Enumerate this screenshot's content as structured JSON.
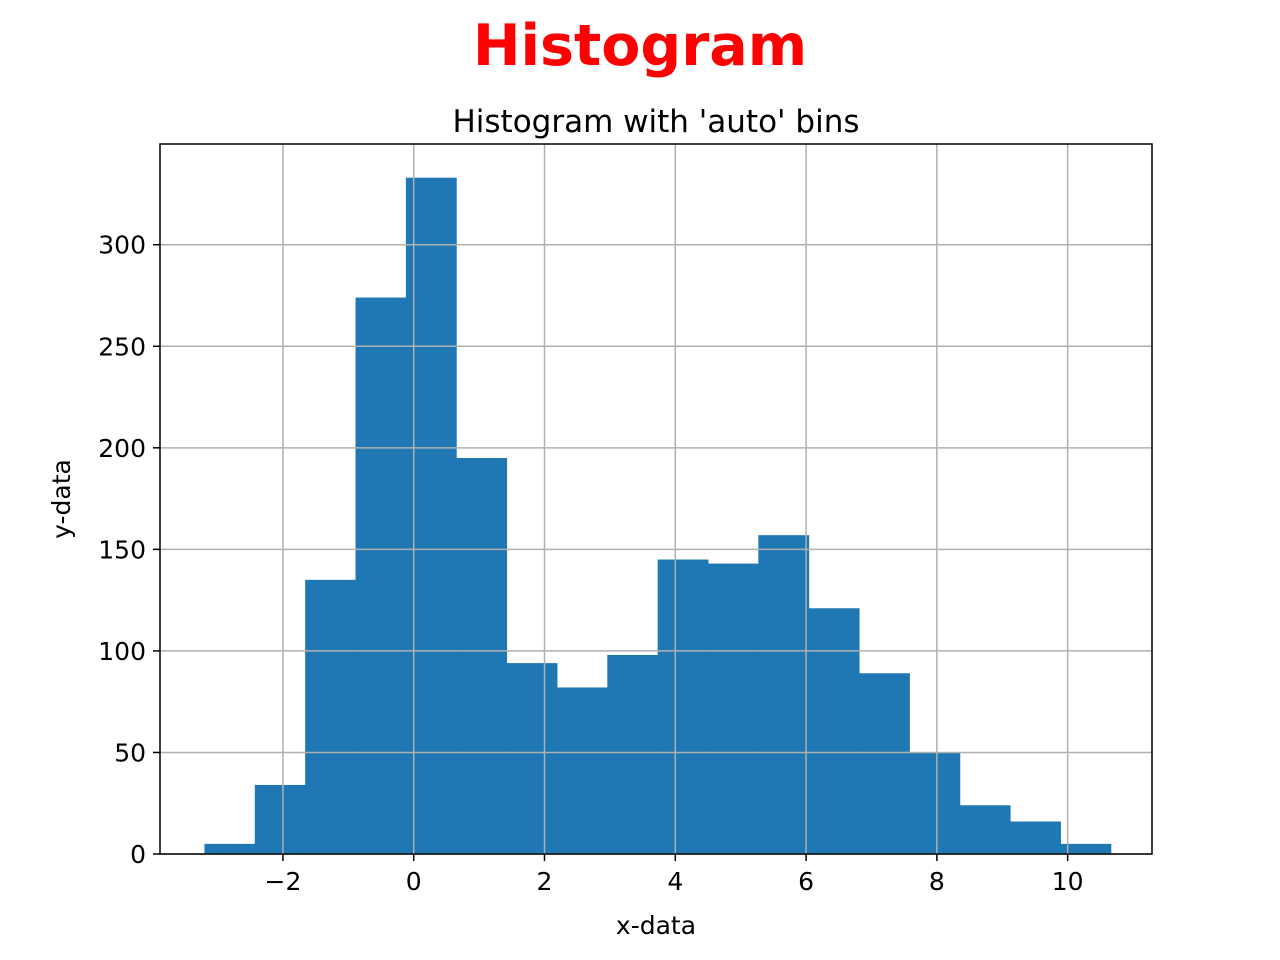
{
  "chart_data": {
    "type": "bar",
    "suptitle": "Histogram",
    "title": "Histogram with 'auto' bins",
    "xlabel": "x-data",
    "ylabel": "y-data",
    "bin_edges": [
      -3.2,
      -2.43,
      -1.66,
      -0.89,
      -0.12,
      0.65,
      1.42,
      2.19,
      2.96,
      3.73,
      4.5,
      5.27,
      6.04,
      6.81,
      7.58,
      8.35,
      9.12,
      9.89,
      10.66
    ],
    "values": [
      5,
      34,
      135,
      274,
      333,
      195,
      94,
      82,
      98,
      145,
      143,
      157,
      121,
      89,
      50,
      24,
      16,
      5
    ],
    "xlim": [
      -3.88,
      11.29
    ],
    "ylim": [
      0,
      349.6
    ],
    "xticks": [
      -2,
      0,
      2,
      4,
      6,
      8,
      10
    ],
    "xtick_labels": [
      "−2",
      "0",
      "2",
      "4",
      "6",
      "8",
      "10"
    ],
    "yticks": [
      0,
      50,
      100,
      150,
      200,
      250,
      300
    ],
    "ytick_labels": [
      "0",
      "50",
      "100",
      "150",
      "200",
      "250",
      "300"
    ],
    "grid": true,
    "legend": "none"
  },
  "colors": {
    "bar": "#1f77b4",
    "suptitle": "#ff0000",
    "grid": "#b0b0b0",
    "axes": "#000000"
  }
}
